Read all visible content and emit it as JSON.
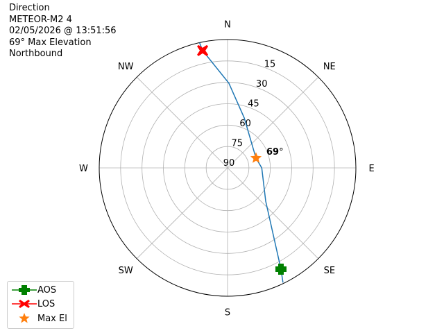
{
  "title_lines": [
    "Direction",
    "METEOR-M2 4",
    "02/05/2026 @ 13:51:56",
    "69° Max Elevation",
    "Northbound"
  ],
  "chart_data": {
    "type": "polar",
    "theta_direction": "clockwise",
    "theta_zero": "N",
    "direction_labels": [
      {
        "label": "N",
        "az": 0
      },
      {
        "label": "NE",
        "az": 45
      },
      {
        "label": "E",
        "az": 90
      },
      {
        "label": "SE",
        "az": 135
      },
      {
        "label": "S",
        "az": 180
      },
      {
        "label": "SW",
        "az": 225
      },
      {
        "label": "W",
        "az": 270
      },
      {
        "label": "NW",
        "az": 315
      }
    ],
    "radial_ticks": [
      15,
      30,
      45,
      60,
      75,
      90
    ],
    "radial_range": [
      90,
      0
    ],
    "grid": true,
    "track": {
      "color": "#1f77b4",
      "points": [
        {
          "az": 154.2,
          "el": 0.7
        },
        {
          "az": 152.2,
          "el": 9.7
        },
        {
          "az": 131.1,
          "el": 54.5
        },
        {
          "az": 90,
          "el": 66
        },
        {
          "az": 71,
          "el": 68.9
        },
        {
          "az": 18.4,
          "el": 53
        },
        {
          "az": 0.9,
          "el": 30.6
        },
        {
          "az": 348,
          "el": 5.9
        },
        {
          "az": 347.4,
          "el": 0
        }
      ]
    },
    "markers": [
      {
        "name": "AOS",
        "az": 152.2,
        "el": 9.7,
        "color": "#008000",
        "shape": "plus"
      },
      {
        "name": "LOS",
        "az": 348,
        "el": 5.9,
        "color": "#ff0000",
        "shape": "x"
      },
      {
        "name": "Max El",
        "az": 71,
        "el": 68.9,
        "color": "#ff7f0e",
        "shape": "star"
      }
    ],
    "annotation": {
      "text": "69",
      "suffix": "°",
      "az": 71,
      "el": 68.9
    },
    "legend_position": "lower-left"
  }
}
